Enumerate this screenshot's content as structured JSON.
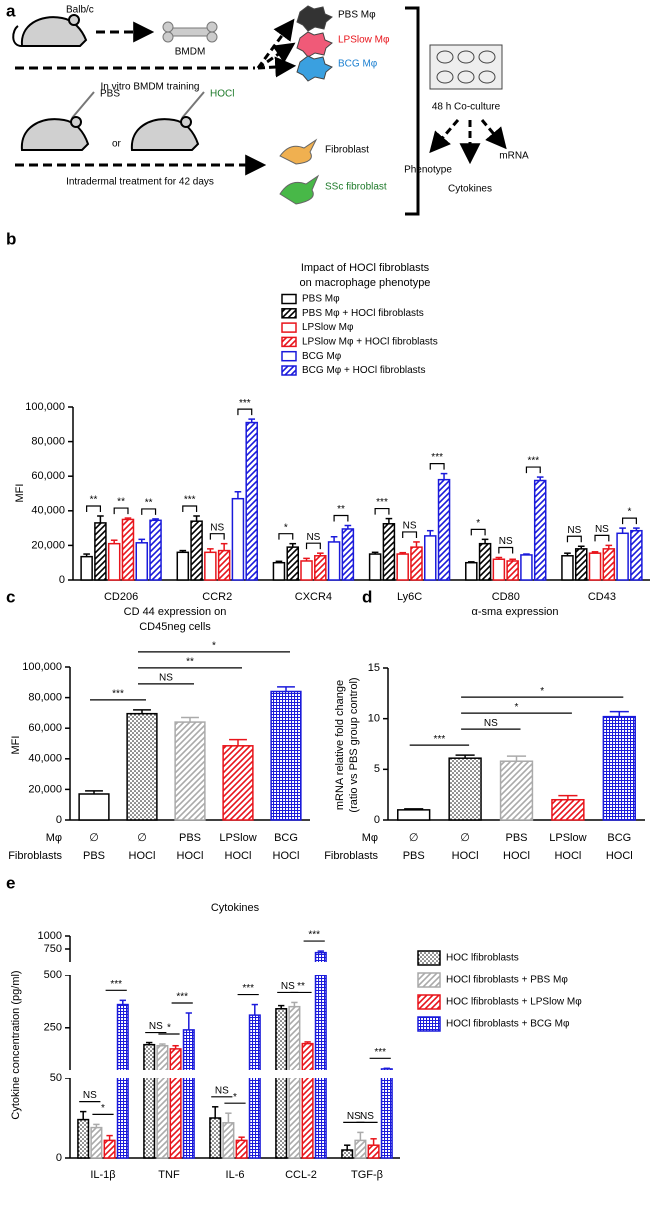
{
  "panel_a": {
    "panel_label": "a",
    "mouse_strain": "Balb/c",
    "bmdm": "BMDM",
    "training": "In vitro BMDM training",
    "macrophages": [
      "PBS Mφ",
      "LPSlow Mφ",
      "BCG Mφ"
    ],
    "treatments": [
      "PBS",
      "HOCl"
    ],
    "or": "or",
    "treatment_duration": "Intradermal treatment for 42 days",
    "fibroblasts": [
      "Fibroblast",
      "SSc fibroblast"
    ],
    "coculture": "48 h Co-culture",
    "readouts": [
      "Phenotype",
      "Cytokines",
      "mRNA"
    ]
  },
  "chart_data": [
    {
      "type": "bar",
      "panel_label": "b",
      "title": [
        "Impact of HOCl fibroblasts",
        "on macrophage phenotype"
      ],
      "ylabel": "MFI",
      "categories": [
        "CD206",
        "CCR2",
        "CXCR4",
        "Ly6C",
        "CD80",
        "CD43"
      ],
      "series": [
        {
          "name": "PBS Mφ",
          "color": "#000000",
          "pattern": "none",
          "values": [
            13500,
            16000,
            10000,
            15000,
            10000,
            14000
          ],
          "errors": [
            1500,
            1000,
            800,
            1000,
            500,
            1500
          ]
        },
        {
          "name": "PBS Mφ + HOCl fibroblasts",
          "color": "#000000",
          "pattern": "hatch",
          "values": [
            33000,
            34000,
            19000,
            32500,
            21000,
            18000
          ],
          "errors": [
            4000,
            3000,
            2000,
            3000,
            2500,
            1500
          ]
        },
        {
          "name": "LPSlow Mφ",
          "color": "#e8141b",
          "pattern": "none",
          "values": [
            21000,
            16000,
            11000,
            15000,
            12000,
            15500
          ],
          "errors": [
            2000,
            2000,
            1500,
            800,
            1000,
            800
          ]
        },
        {
          "name": "LPSlow Mφ + HOCl fibroblasts",
          "color": "#e8141b",
          "pattern": "hatch",
          "values": [
            35000,
            17000,
            14000,
            19000,
            11000,
            18000
          ],
          "errors": [
            800,
            4000,
            1500,
            3000,
            1000,
            2000
          ]
        },
        {
          "name": "BCG Mφ",
          "color": "#1a1adb",
          "pattern": "none",
          "values": [
            21500,
            47000,
            22000,
            25500,
            14500,
            27000
          ],
          "errors": [
            2000,
            4000,
            3000,
            3000,
            500,
            3000
          ]
        },
        {
          "name": "BCG Mφ + HOCl fibroblasts",
          "color": "#1a1adb",
          "pattern": "hatch",
          "values": [
            34500,
            91000,
            29500,
            58000,
            57500,
            28500
          ],
          "errors": [
            800,
            2000,
            2000,
            3500,
            2000,
            1500
          ]
        }
      ],
      "ylim": [
        0,
        100000
      ],
      "yticks": [
        0,
        {
          "value": 20000,
          "label": "20,000"
        },
        {
          "value": 40000,
          "label": "40,000"
        },
        {
          "value": 60000,
          "label": "60,000"
        },
        {
          "value": 80000,
          "label": "80,000"
        },
        {
          "value": 100000,
          "label": "100,000"
        }
      ],
      "annotations": [
        "**",
        "**",
        "**",
        "***",
        "NS",
        "***",
        "*",
        "NS",
        "**",
        "***",
        "NS",
        "***",
        "*",
        "NS",
        "***",
        "NS",
        "NS",
        "*"
      ]
    },
    {
      "type": "bar",
      "panel_label": "c",
      "title": [
        "CD 44 expression on",
        "CD45neg cells"
      ],
      "ylabel": "MFI",
      "category_row_labels": [
        "Mφ",
        "Fibroblasts"
      ],
      "categories": [
        [
          "∅",
          "PBS"
        ],
        [
          "∅",
          "HOCl"
        ],
        [
          "PBS",
          "HOCl"
        ],
        [
          "LPSlow",
          "HOCl"
        ],
        [
          "BCG",
          "HOCl"
        ]
      ],
      "values": [
        17000,
        69500,
        64000,
        48500,
        84000
      ],
      "errors": [
        2000,
        2500,
        3000,
        4000,
        3000
      ],
      "colors": [
        "#000000",
        "#000000",
        "#aaaaaa",
        "#e8141b",
        "#1a1adb"
      ],
      "patterns": [
        "none",
        "dots",
        "hatch",
        "hatch",
        "cross"
      ],
      "ylim": [
        0,
        100000
      ],
      "yticks": [
        0,
        {
          "value": 20000,
          "label": "20,000"
        },
        {
          "value": 40000,
          "label": "40,000"
        },
        {
          "value": 60000,
          "label": "60,000"
        },
        {
          "value": 80000,
          "label": "80,000"
        },
        {
          "value": 100000,
          "label": "100,000"
        }
      ],
      "annotations": [
        "***",
        "NS",
        "**",
        "*"
      ]
    },
    {
      "type": "bar",
      "panel_label": "d",
      "title": [
        "α-sma expression"
      ],
      "ylabel": [
        "mRNA relative fold change",
        "(ratio vs PBS group control)"
      ],
      "category_row_labels": [
        "Mφ",
        "Fibroblasts"
      ],
      "categories": [
        [
          "∅",
          "PBS"
        ],
        [
          "∅",
          "HOCl"
        ],
        [
          "PBS",
          "HOCl"
        ],
        [
          "LPSlow",
          "HOCl"
        ],
        [
          "BCG",
          "HOCl"
        ]
      ],
      "values": [
        1,
        6.1,
        5.8,
        2,
        10.2
      ],
      "errors": [
        0.1,
        0.3,
        0.5,
        0.4,
        0.5
      ],
      "colors": [
        "#000000",
        "#000000",
        "#aaaaaa",
        "#e8141b",
        "#1a1adb"
      ],
      "patterns": [
        "none",
        "dots",
        "hatch",
        "hatch",
        "cross"
      ],
      "ylim": [
        0,
        15
      ],
      "yticks": [
        0,
        5,
        10,
        15
      ],
      "annotations": [
        "***",
        "NS",
        "*",
        "*"
      ]
    },
    {
      "type": "bar",
      "panel_label": "e",
      "title": "Cytokines",
      "ylabel": "Cytokine concentration (pg/ml)",
      "categories": [
        "IL-1β",
        "TNF",
        "IL-6",
        "CCL-2",
        "TGF-β"
      ],
      "series": [
        {
          "name": "HOC lfibroblasts",
          "color": "#000000",
          "pattern": "dots",
          "values": [
            24,
            170,
            25,
            340,
            5
          ],
          "errors": [
            5,
            10,
            7,
            15,
            3
          ]
        },
        {
          "name": "HOCl fibroblasts + PBS Mφ",
          "color": "#aaaaaa",
          "pattern": "hatch",
          "values": [
            19,
            165,
            22,
            350,
            11
          ],
          "errors": [
            2,
            8,
            6,
            20,
            5
          ]
        },
        {
          "name": "HOC lfibroblasts + LPSlow Mφ",
          "color": "#e8141b",
          "pattern": "hatch",
          "values": [
            11,
            150,
            11,
            175,
            8
          ],
          "errors": [
            3,
            15,
            2,
            8,
            4
          ]
        },
        {
          "name": "HOCl fibroblasts + BCG Mφ",
          "color": "#1a1adb",
          "pattern": "cross",
          "values": [
            360,
            240,
            310,
            680,
            55
          ],
          "errors": [
            20,
            80,
            50,
            30,
            3
          ]
        }
      ],
      "ylim": [
        0,
        1000
      ],
      "ysegments": [
        [
          0,
          50
        ],
        [
          50,
          500
        ],
        [
          500,
          1000
        ]
      ],
      "yticks": [
        0,
        50,
        250,
        500,
        750,
        1000
      ],
      "annotations": [
        "NS",
        "*",
        "***",
        "NS",
        "*",
        "***",
        "NS",
        "*",
        "***",
        "NS",
        "**",
        "***",
        "NS",
        "NS",
        "***"
      ]
    }
  ]
}
